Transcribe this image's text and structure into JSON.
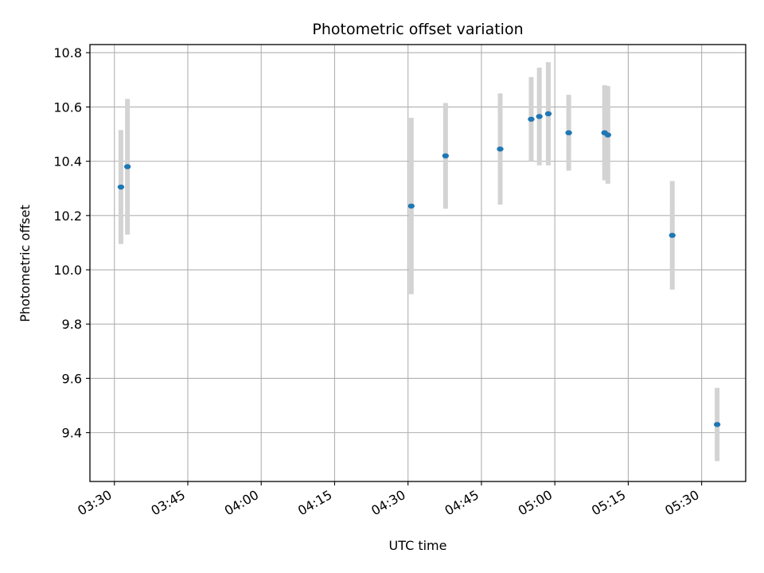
{
  "chart_data": {
    "type": "scatter",
    "title": "Photometric offset variation",
    "xlabel": "UTC time",
    "ylabel": "Photometric offset",
    "x_tick_labels": [
      "03:30",
      "03:45",
      "04:00",
      "04:15",
      "04:30",
      "04:45",
      "05:00",
      "05:15",
      "05:30"
    ],
    "y_tick_labels": [
      "9.4",
      "9.6",
      "9.8",
      "10.0",
      "10.2",
      "10.4",
      "10.6",
      "10.8"
    ],
    "xlim": [
      "03:25",
      "05:39"
    ],
    "ylim": [
      9.22,
      10.83
    ],
    "grid": true,
    "points": [
      {
        "x": "03:31:20",
        "y": 10.305,
        "yerr": 0.21
      },
      {
        "x": "03:32:40",
        "y": 10.38,
        "yerr": 0.25
      },
      {
        "x": "04:30:40",
        "y": 10.235,
        "yerr": 0.325
      },
      {
        "x": "04:37:40",
        "y": 10.42,
        "yerr": 0.195
      },
      {
        "x": "04:48:50",
        "y": 10.445,
        "yerr": 0.205
      },
      {
        "x": "04:55:10",
        "y": 10.555,
        "yerr": 0.155
      },
      {
        "x": "04:56:50",
        "y": 10.565,
        "yerr": 0.18
      },
      {
        "x": "04:58:40",
        "y": 10.575,
        "yerr": 0.19
      },
      {
        "x": "05:02:50",
        "y": 10.505,
        "yerr": 0.14
      },
      {
        "x": "05:10:10",
        "y": 10.505,
        "yerr": 0.175
      },
      {
        "x": "05:10:50",
        "y": 10.497,
        "yerr": 0.18
      },
      {
        "x": "05:24:00",
        "y": 10.127,
        "yerr": 0.2
      },
      {
        "x": "05:33:10",
        "y": 9.43,
        "yerr": 0.135
      }
    ],
    "colors": {
      "point": "#1f77b4",
      "errorbar": "#d3d3d3",
      "grid": "#b0b0b0"
    }
  }
}
